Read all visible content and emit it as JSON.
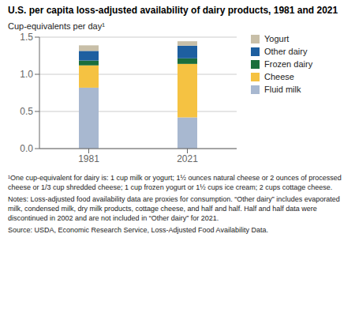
{
  "chart_data": {
    "type": "bar",
    "stacked": true,
    "title": "U.S. per capita loss-adjusted availability of dairy products, 1981 and 2021",
    "ylabel": "Cup-equivalents per day¹",
    "categories": [
      "1981",
      "2021"
    ],
    "series": [
      {
        "name": "Fluid milk",
        "color": "#a8b8d0",
        "values": [
          0.82,
          0.42
        ]
      },
      {
        "name": "Cheese",
        "color": "#f5c242",
        "values": [
          0.3,
          0.72
        ]
      },
      {
        "name": "Frozen dairy",
        "color": "#1a6e3c",
        "values": [
          0.065,
          0.075
        ]
      },
      {
        "name": "Other dairy",
        "color": "#1e5fa0",
        "values": [
          0.13,
          0.17
        ]
      },
      {
        "name": "Yogurt",
        "color": "#c8bfa8",
        "values": [
          0.075,
          0.06
        ]
      }
    ],
    "ylim": [
      0,
      1.5
    ],
    "yticks": [
      {
        "value": 0,
        "label": "0.0"
      },
      0.5,
      {
        "value": 1,
        "label": "1.0"
      },
      1.5
    ],
    "grid": true,
    "legend": "right",
    "annotations": [
      "¹One cup-equivalent for dairy is: 1 cup milk or yogurt; 1½ ounces natural cheese or 2 ounces of processed cheese or 1/3 cup shredded cheese; 1 cup frozen yogurt or 1½ cups ice cream; 2 cups cottage cheese.",
      "Notes: Loss-adjusted food availability data are proxies for consumption. “Other dairy” includes evaporated milk, condensed milk, dry milk products, cottage cheese, and half and half. Half and half data were discontinued in 2002 and are not included in “Other dairy” for 2021.",
      "Source: USDA, Economic Research Service, Loss-Adjusted Food Availability Data."
    ]
  }
}
